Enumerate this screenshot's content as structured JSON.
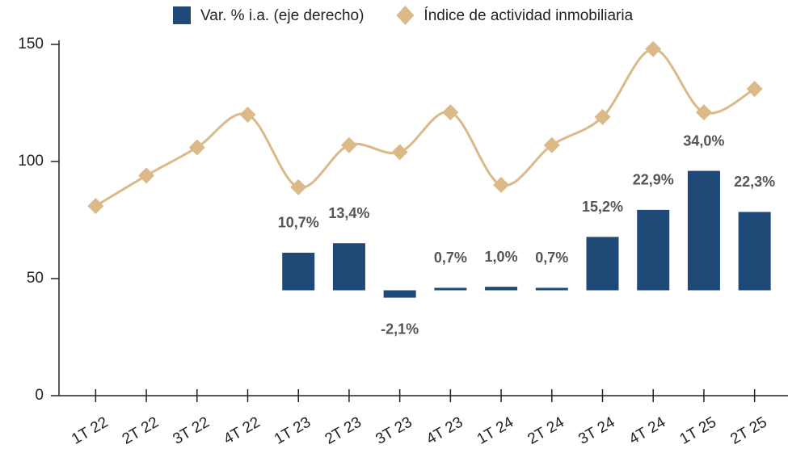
{
  "chart_data": {
    "type": "bar-line",
    "categories": [
      "1T 22",
      "2T 22",
      "3T 22",
      "4T 22",
      "1T 23",
      "2T 23",
      "3T 23",
      "4T 23",
      "1T 24",
      "2T 24",
      "3T 24",
      "4T 24",
      "1T 25",
      "2T 25"
    ],
    "series": [
      {
        "name": "Var. % i.a. (eje derecho)",
        "type": "bar",
        "axis": "y2",
        "color": "#1f4a78",
        "values": [
          null,
          null,
          null,
          null,
          10.7,
          13.4,
          -2.1,
          0.7,
          1.0,
          0.7,
          15.2,
          22.9,
          34.0,
          22.3
        ],
        "value_labels": [
          null,
          null,
          null,
          null,
          "10,7%",
          "13,4%",
          "-2,1%",
          "0,7%",
          "1,0%",
          "0,7%",
          "15,2%",
          "22,9%",
          "34,0%",
          "22,3%"
        ]
      },
      {
        "name": "Índice de actividad inmobiliaria",
        "type": "line",
        "color": "#dbb988",
        "values": [
          81,
          94,
          106,
          120,
          89,
          107,
          104,
          121,
          90,
          107,
          119,
          148,
          121,
          131
        ]
      }
    ],
    "ylim": [
      0,
      150
    ],
    "yticks": [
      0,
      50,
      100,
      150
    ],
    "y2lim": [
      -30,
      70
    ],
    "legend": "top"
  }
}
